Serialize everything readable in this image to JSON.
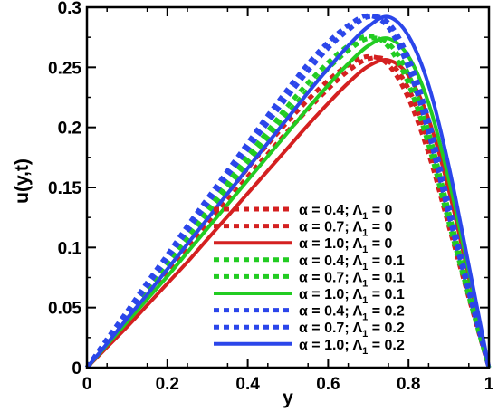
{
  "chart_data": {
    "type": "line",
    "title": "",
    "xlabel": "y",
    "ylabel": "u(y,t)",
    "xlim": [
      0,
      1
    ],
    "ylim": [
      0,
      0.3
    ],
    "x_ticks": [
      "0",
      "0.2",
      "0.4",
      "0.6",
      "0.8",
      "1"
    ],
    "y_ticks": [
      "0",
      "0.05",
      "0.1",
      "0.15",
      "0.2",
      "0.25",
      "0.3"
    ],
    "x_tick_values": [
      0,
      0.2,
      0.4,
      0.6,
      0.8,
      1.0
    ],
    "y_tick_values": [
      0,
      0.05,
      0.1,
      0.15,
      0.2,
      0.25,
      0.3
    ],
    "grid": false,
    "legend_position": "center-right",
    "x": [
      0,
      0.05,
      0.1,
      0.15,
      0.2,
      0.25,
      0.3,
      0.35,
      0.4,
      0.45,
      0.5,
      0.55,
      0.6,
      0.65,
      0.7,
      0.75,
      0.8,
      0.85,
      0.9,
      0.95,
      1.0
    ],
    "series": [
      {
        "name": "α = 0.4; Λ1 = 0",
        "alpha": "0.4",
        "lambda": "0",
        "color": "#d42020",
        "style": "dotted",
        "values": [
          0,
          0.02,
          0.04,
          0.061,
          0.082,
          0.103,
          0.124,
          0.145,
          0.166,
          0.186,
          0.205,
          0.223,
          0.239,
          0.252,
          0.259,
          0.252,
          0.224,
          0.178,
          0.118,
          0.058,
          0
        ]
      },
      {
        "name": "α = 0.7; Λ1 = 0",
        "alpha": "0.7",
        "lambda": "0",
        "color": "#d42020",
        "style": "dotted",
        "values": [
          0,
          0.019,
          0.039,
          0.059,
          0.079,
          0.099,
          0.119,
          0.139,
          0.159,
          0.178,
          0.197,
          0.215,
          0.232,
          0.247,
          0.257,
          0.255,
          0.232,
          0.188,
          0.127,
          0.063,
          0
        ]
      },
      {
        "name": "α = 1.0; Λ1 = 0",
        "alpha": "1.0",
        "lambda": "0",
        "color": "#d42020",
        "style": "solid",
        "values": [
          0,
          0.017,
          0.034,
          0.052,
          0.07,
          0.088,
          0.107,
          0.126,
          0.145,
          0.164,
          0.183,
          0.202,
          0.22,
          0.237,
          0.251,
          0.256,
          0.243,
          0.207,
          0.148,
          0.075,
          0
        ]
      },
      {
        "name": "α = 0.4; Λ1 = 0.1",
        "alpha": "0.4",
        "lambda": "0.1",
        "color": "#22cc22",
        "style": "dotted",
        "values": [
          0,
          0.022,
          0.044,
          0.066,
          0.088,
          0.11,
          0.132,
          0.154,
          0.176,
          0.197,
          0.218,
          0.237,
          0.254,
          0.268,
          0.276,
          0.267,
          0.236,
          0.185,
          0.121,
          0.059,
          0
        ]
      },
      {
        "name": "α = 0.7; Λ1 = 0.1",
        "alpha": "0.7",
        "lambda": "0.1",
        "color": "#22cc22",
        "style": "dotted",
        "values": [
          0,
          0.021,
          0.043,
          0.064,
          0.086,
          0.107,
          0.129,
          0.15,
          0.171,
          0.192,
          0.212,
          0.231,
          0.249,
          0.264,
          0.274,
          0.27,
          0.244,
          0.196,
          0.13,
          0.064,
          0
        ]
      },
      {
        "name": "α = 1.0; Λ1 = 0.1",
        "alpha": "1.0",
        "lambda": "0.1",
        "color": "#22cc22",
        "style": "solid",
        "values": [
          0,
          0.019,
          0.038,
          0.057,
          0.076,
          0.096,
          0.116,
          0.136,
          0.156,
          0.176,
          0.196,
          0.216,
          0.235,
          0.253,
          0.268,
          0.274,
          0.259,
          0.22,
          0.157,
          0.08,
          0
        ]
      },
      {
        "name": "α = 0.4; Λ1 = 0.2",
        "alpha": "0.4",
        "lambda": "0.2",
        "color": "#2b46ea",
        "style": "dotted",
        "values": [
          0,
          0.024,
          0.047,
          0.071,
          0.094,
          0.118,
          0.141,
          0.164,
          0.187,
          0.21,
          0.232,
          0.253,
          0.271,
          0.285,
          0.293,
          0.283,
          0.249,
          0.195,
          0.127,
          0.062,
          0
        ]
      },
      {
        "name": "α = 0.7; Λ1 = 0.2",
        "alpha": "0.7",
        "lambda": "0.2",
        "color": "#2b46ea",
        "style": "dotted",
        "values": [
          0,
          0.023,
          0.045,
          0.068,
          0.091,
          0.114,
          0.137,
          0.16,
          0.182,
          0.204,
          0.226,
          0.247,
          0.266,
          0.281,
          0.292,
          0.287,
          0.258,
          0.206,
          0.136,
          0.067,
          0
        ]
      },
      {
        "name": "α = 1.0; Λ1 = 0.2",
        "alpha": "1.0",
        "lambda": "0.2",
        "color": "#2b46ea",
        "style": "solid",
        "values": [
          0,
          0.02,
          0.041,
          0.061,
          0.082,
          0.103,
          0.124,
          0.145,
          0.166,
          0.187,
          0.208,
          0.229,
          0.249,
          0.268,
          0.284,
          0.292,
          0.276,
          0.235,
          0.168,
          0.085,
          0
        ]
      }
    ]
  }
}
